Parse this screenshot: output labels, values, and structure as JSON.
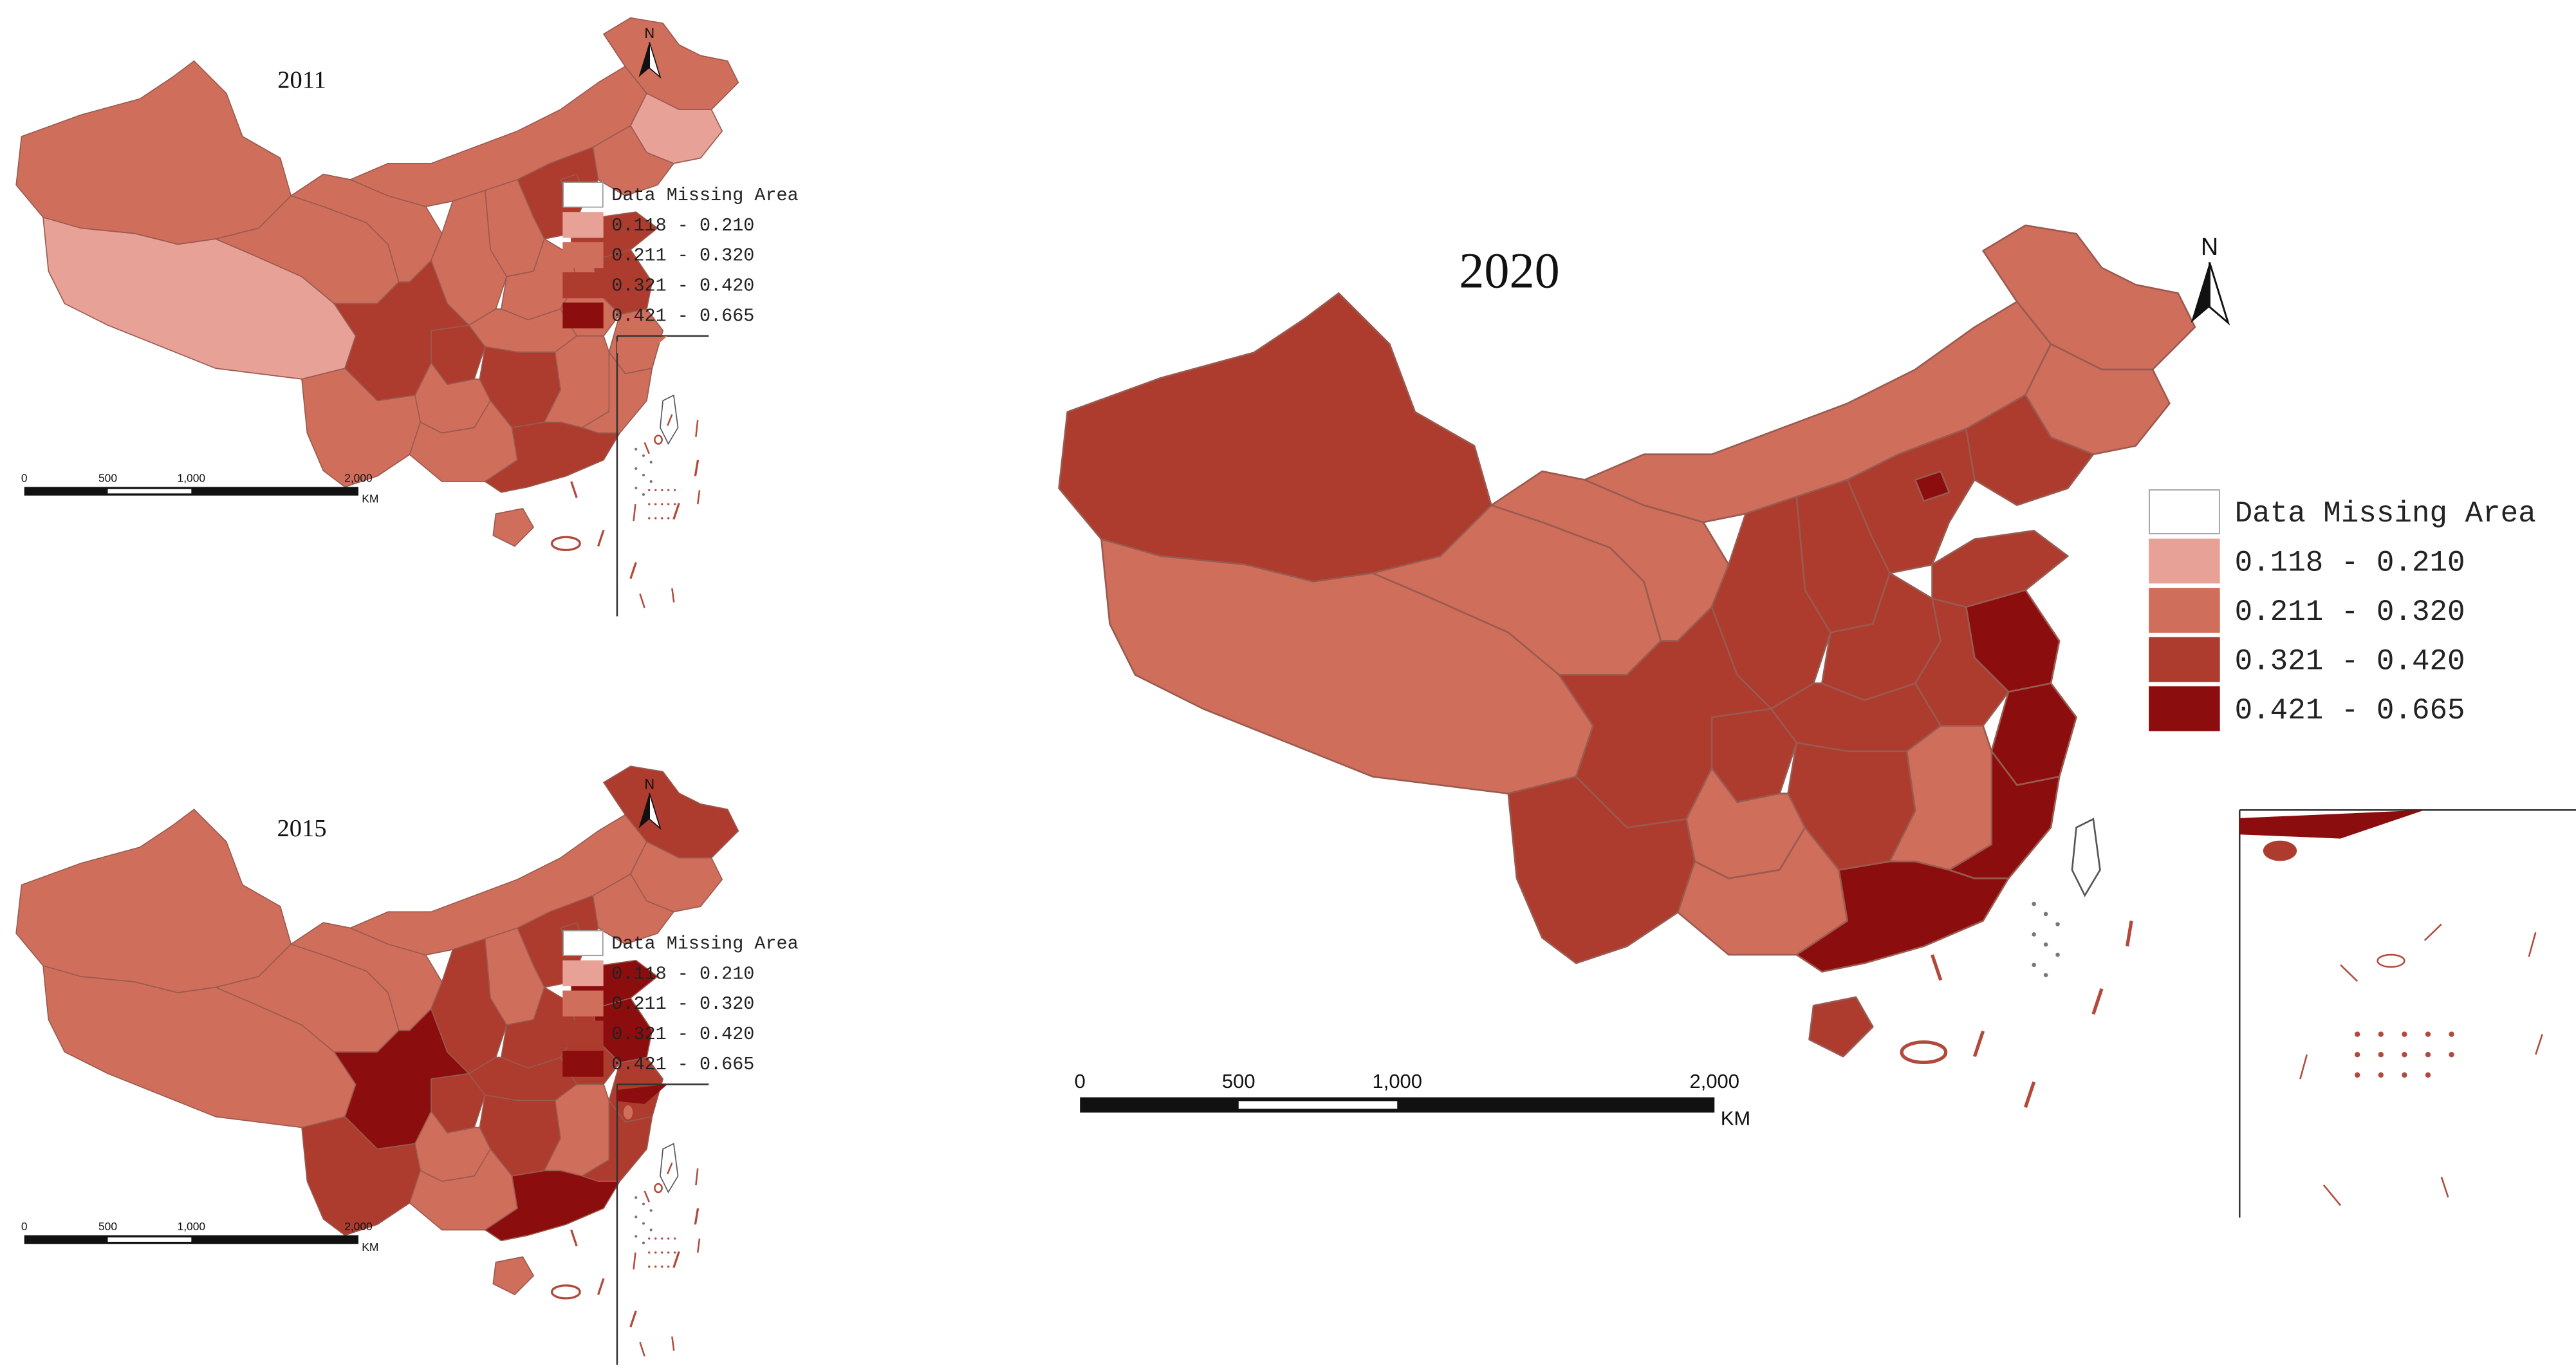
{
  "legend_items": [
    {
      "label": "Data Missing Area",
      "color": "#ffffff"
    },
    {
      "label": "0.118 - 0.210",
      "color": "#e8a196"
    },
    {
      "label": "0.211 - 0.320",
      "color": "#d06e5c"
    },
    {
      "label": "0.321 - 0.420",
      "color": "#ad3b2e"
    },
    {
      "label": "0.421 - 0.665",
      "color": "#8b0d0d"
    }
  ],
  "maps": [
    {
      "year": "2011",
      "north": "N",
      "scale": {
        "ticks": [
          "0",
          "500",
          "1,000",
          "2,000"
        ],
        "unit": "KM"
      },
      "regions": {
        "xinjiang": 2,
        "tibet": 1,
        "qinghai": 2,
        "gansu": 2,
        "inner_mongolia": 2,
        "heilongjiang": 2,
        "jilin": 1,
        "liaoning": 2,
        "hebei": 3,
        "beijing": 3,
        "shandong": 3,
        "jiangsu": 3,
        "shanxi": 2,
        "shaanxi": 2,
        "henan": 2,
        "sichuan": 3,
        "chongqing": 3,
        "hubei": 2,
        "hunan": 3,
        "yunnan": 2,
        "guizhou": 2,
        "guangxi": 2,
        "guangdong": 3,
        "fujian": 2,
        "zhejiang": 2,
        "jiangxi": 2,
        "anhui": 2,
        "hainan": 2,
        "inset": 2
      }
    },
    {
      "year": "2015",
      "north": "N",
      "scale": {
        "ticks": [
          "0",
          "500",
          "1,000",
          "2,000"
        ],
        "unit": "KM"
      },
      "regions": {
        "xinjiang": 2,
        "tibet": 2,
        "qinghai": 2,
        "gansu": 2,
        "inner_mongolia": 2,
        "heilongjiang": 3,
        "jilin": 2,
        "liaoning": 2,
        "hebei": 3,
        "beijing": 3,
        "shandong": 4,
        "jiangsu": 4,
        "shanxi": 2,
        "shaanxi": 3,
        "henan": 3,
        "sichuan": 4,
        "chongqing": 3,
        "hubei": 3,
        "hunan": 3,
        "yunnan": 3,
        "guizhou": 2,
        "guangxi": 2,
        "guangdong": 4,
        "fujian": 3,
        "zhejiang": 3,
        "jiangxi": 2,
        "anhui": 3,
        "hainan": 2,
        "inset": 4
      }
    },
    {
      "year": "2020",
      "north": "N",
      "scale": {
        "ticks": [
          "0",
          "500",
          "1,000",
          "2,000"
        ],
        "unit": "KM"
      },
      "regions": {
        "xinjiang": 3,
        "tibet": 2,
        "qinghai": 2,
        "gansu": 2,
        "inner_mongolia": 2,
        "heilongjiang": 2,
        "jilin": 2,
        "liaoning": 3,
        "hebei": 3,
        "beijing": 4,
        "shandong": 3,
        "jiangsu": 4,
        "shanxi": 3,
        "shaanxi": 3,
        "henan": 3,
        "sichuan": 3,
        "chongqing": 3,
        "hubei": 3,
        "hunan": 3,
        "yunnan": 3,
        "guizhou": 2,
        "guangxi": 2,
        "guangdong": 4,
        "fujian": 4,
        "zhejiang": 4,
        "jiangxi": 2,
        "anhui": 3,
        "hainan": 3,
        "inset": 4
      }
    }
  ]
}
